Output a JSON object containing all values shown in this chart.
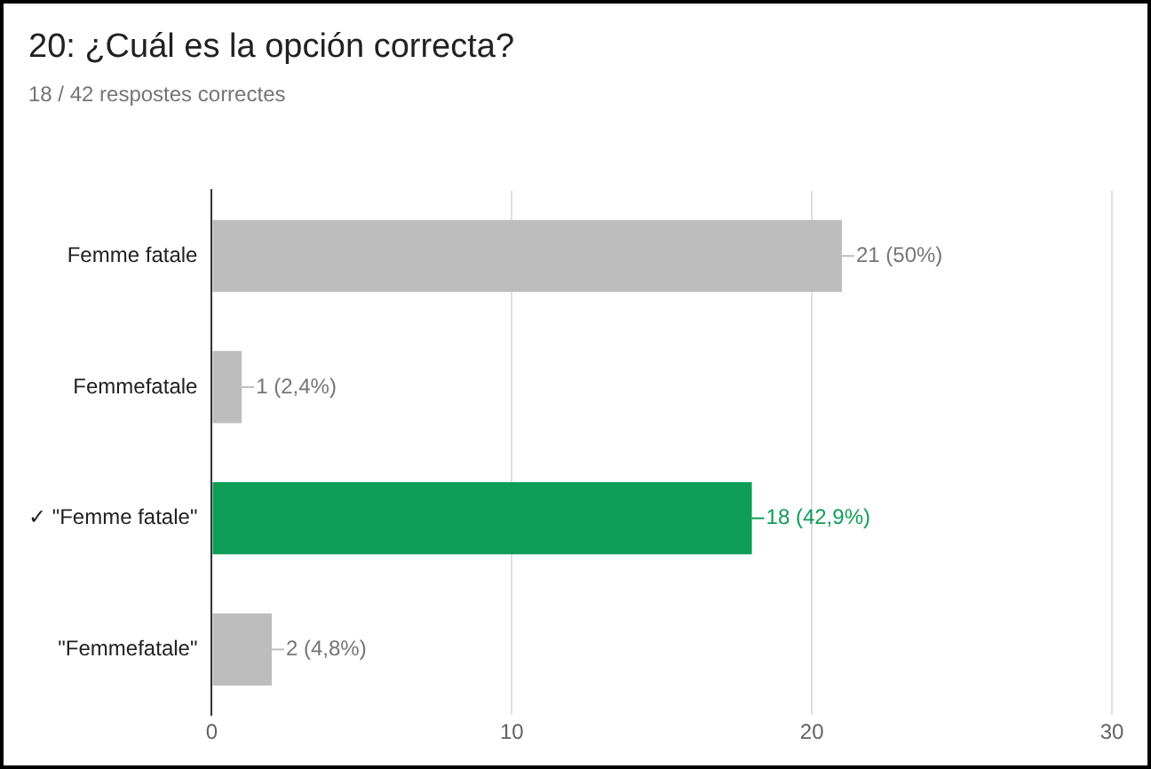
{
  "chart_data": {
    "type": "bar",
    "orientation": "horizontal",
    "title": "20: ¿Cuál es la opción correcta?",
    "subtitle": "18 / 42 respostes correctes",
    "categories": [
      "Femme fatale",
      "Femmefatale",
      "✓ \"Femme fatale\"",
      "\"Femmefatale\""
    ],
    "values": [
      21,
      1,
      18,
      2
    ],
    "colors": [
      "#bdbdbd",
      "#bdbdbd",
      "#0f9d58",
      "#bdbdbd"
    ],
    "value_labels": [
      "21 (50%)",
      "1 (2,4%)",
      "18 (42,9%)",
      "2 (4,8%)"
    ],
    "xlim": [
      0,
      30
    ],
    "xticks": [
      0,
      10,
      20,
      30
    ],
    "grid": "x",
    "legend": false
  }
}
